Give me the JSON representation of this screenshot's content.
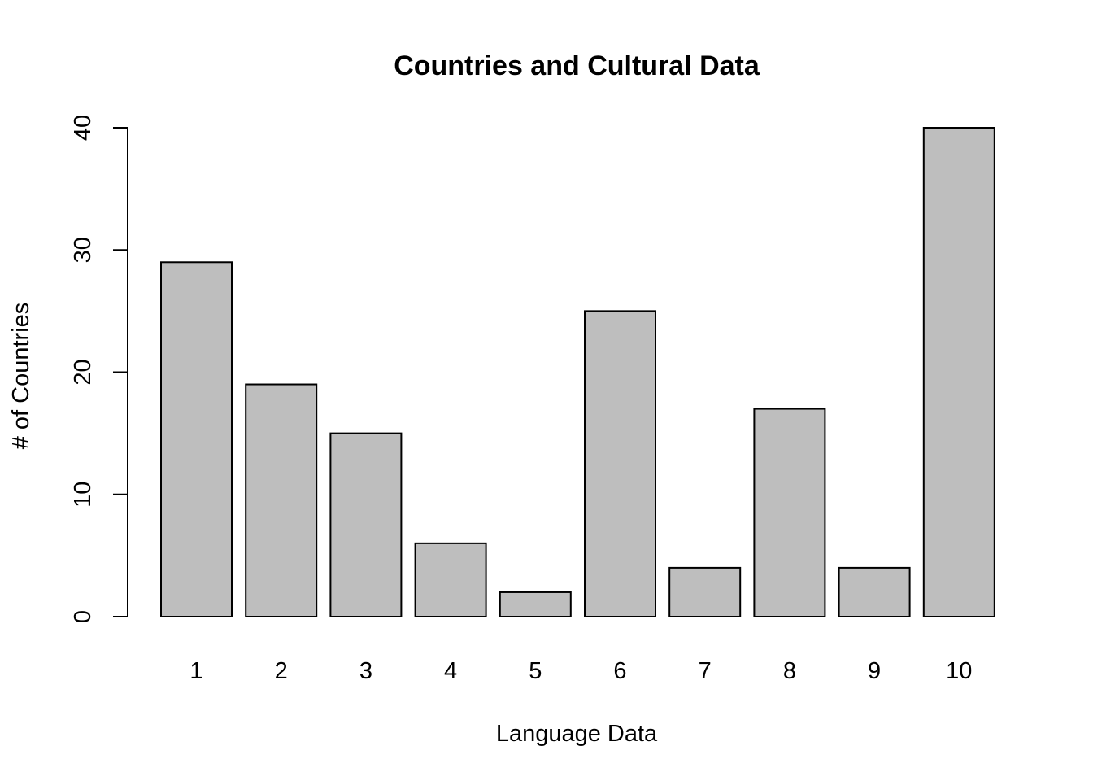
{
  "chart_data": {
    "type": "bar",
    "title": "Countries and Cultural Data",
    "xlabel": "Language Data",
    "ylabel": "# of Countries",
    "categories": [
      "1",
      "2",
      "3",
      "4",
      "5",
      "6",
      "7",
      "8",
      "9",
      "10"
    ],
    "values": [
      29,
      19,
      15,
      6,
      2,
      25,
      4,
      17,
      4,
      40
    ],
    "ylim": [
      0,
      40
    ],
    "yticks": [
      "0",
      "10",
      "20",
      "30",
      "40"
    ],
    "grid": false,
    "legend": "none",
    "colors": {
      "bar_fill": "#bebebe",
      "bar_stroke": "#000000"
    }
  }
}
